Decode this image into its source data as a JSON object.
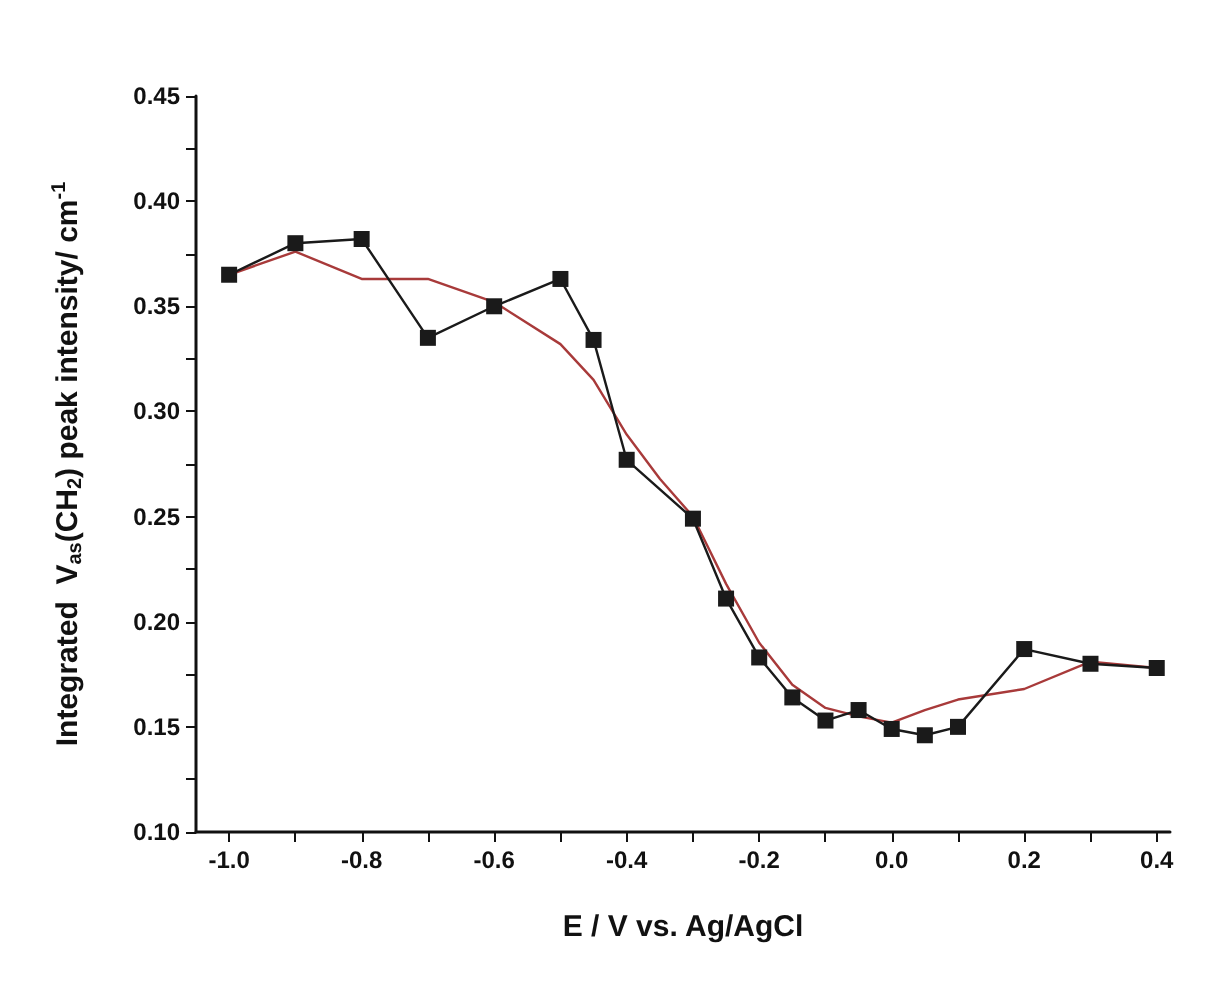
{
  "chart_data": {
    "type": "line",
    "xlabel": "E / V vs. Ag/AgCl",
    "ylabel": "Integrated  V$_{as}$(CH$_{2}$) peak intensity/ cm$^{-1}$",
    "xlim": [
      -1.05,
      0.42
    ],
    "ylim": [
      0.1,
      0.45
    ],
    "xticks": [
      {
        "value": -1.0,
        "label": "-1.0"
      },
      {
        "value": -0.9,
        "label": null
      },
      {
        "value": -0.8,
        "label": "-0.8"
      },
      {
        "value": -0.7,
        "label": null
      },
      {
        "value": -0.6,
        "label": "-0.6"
      },
      {
        "value": -0.5,
        "label": null
      },
      {
        "value": -0.4,
        "label": "-0.4"
      },
      {
        "value": -0.3,
        "label": null
      },
      {
        "value": -0.2,
        "label": "-0.2"
      },
      {
        "value": -0.1,
        "label": null
      },
      {
        "value": 0.0,
        "label": "0.0"
      },
      {
        "value": 0.1,
        "label": null
      },
      {
        "value": 0.2,
        "label": "0.2"
      },
      {
        "value": 0.3,
        "label": null
      },
      {
        "value": 0.4,
        "label": "0.4"
      }
    ],
    "yticks": [
      {
        "value": 0.1,
        "label": "0.10"
      },
      {
        "value": 0.125,
        "label": null
      },
      {
        "value": 0.15,
        "label": "0.15"
      },
      {
        "value": 0.175,
        "label": null
      },
      {
        "value": 0.2,
        "label": "0.20"
      },
      {
        "value": 0.225,
        "label": null
      },
      {
        "value": 0.25,
        "label": "0.25"
      },
      {
        "value": 0.275,
        "label": null
      },
      {
        "value": 0.3,
        "label": "0.30"
      },
      {
        "value": 0.325,
        "label": null
      },
      {
        "value": 0.35,
        "label": "0.35"
      },
      {
        "value": 0.375,
        "label": null
      },
      {
        "value": 0.4,
        "label": "0.40"
      },
      {
        "value": 0.425,
        "label": null
      },
      {
        "value": 0.45,
        "label": "0.45"
      }
    ],
    "grid": false,
    "series": [
      {
        "color": "#1a1a1a",
        "marker": "square",
        "line_style": "solid",
        "x": [
          -1.0,
          -0.9,
          -0.8,
          -0.7,
          -0.6,
          -0.5,
          -0.45,
          -0.4,
          -0.3,
          -0.25,
          -0.2,
          -0.15,
          -0.1,
          -0.05,
          0.0,
          0.05,
          0.1,
          0.2,
          0.3,
          0.4
        ],
        "values": [
          0.365,
          0.38,
          0.382,
          0.335,
          0.35,
          0.363,
          0.334,
          0.277,
          0.249,
          0.211,
          0.183,
          0.164,
          0.153,
          0.158,
          0.149,
          0.146,
          0.15,
          0.187,
          0.18,
          0.178
        ]
      },
      {
        "color": "#a83a3a",
        "marker": "none",
        "line_style": "solid",
        "x": [
          -1.0,
          -0.9,
          -0.8,
          -0.7,
          -0.6,
          -0.5,
          -0.45,
          -0.4,
          -0.35,
          -0.3,
          -0.25,
          -0.2,
          -0.15,
          -0.1,
          -0.05,
          0.0,
          0.05,
          0.1,
          0.2,
          0.3,
          0.4
        ],
        "values": [
          0.365,
          0.376,
          0.363,
          0.363,
          0.352,
          0.332,
          0.315,
          0.289,
          0.268,
          0.25,
          0.218,
          0.19,
          0.17,
          0.159,
          0.155,
          0.152,
          0.158,
          0.163,
          0.168,
          0.181,
          0.178
        ]
      }
    ]
  }
}
